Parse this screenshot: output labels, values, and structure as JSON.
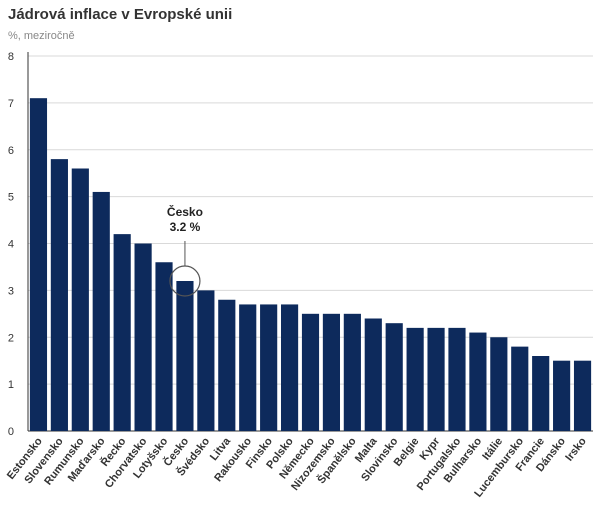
{
  "chart_data": {
    "type": "bar",
    "title": "Jádrová inflace v Evropské unii",
    "subtitle": "%, meziročně",
    "categories": [
      "Estonsko",
      "Slovensko",
      "Rumunsko",
      "Maďarsko",
      "Řecko",
      "Chorvatsko",
      "Lotyšsko",
      "Česko",
      "Švédsko",
      "Litva",
      "Rakousko",
      "Finsko",
      "Polsko",
      "Německo",
      "Nizozemsko",
      "Španělsko",
      "Malta",
      "Slovinsko",
      "Belgie",
      "Kypr",
      "Portugalsko",
      "Bulharsko",
      "Itálie",
      "Lucembursko",
      "Francie",
      "Dánsko",
      "Irsko"
    ],
    "values": [
      7.1,
      5.8,
      5.6,
      5.1,
      4.2,
      4.0,
      3.6,
      3.2,
      3.0,
      2.8,
      2.7,
      2.7,
      2.7,
      2.5,
      2.5,
      2.5,
      2.4,
      2.3,
      2.2,
      2.2,
      2.2,
      2.1,
      2.0,
      1.8,
      1.6,
      1.5,
      1.5
    ],
    "yticks": [
      "0",
      "1",
      "2",
      "3",
      "4",
      "5",
      "6",
      "7",
      "8"
    ],
    "ylim": [
      0,
      8
    ],
    "grid": true,
    "bar_color": "#0d2a5c",
    "annotation": {
      "category": "Česko",
      "label": "Česko",
      "value_label": "3.2 %"
    }
  }
}
